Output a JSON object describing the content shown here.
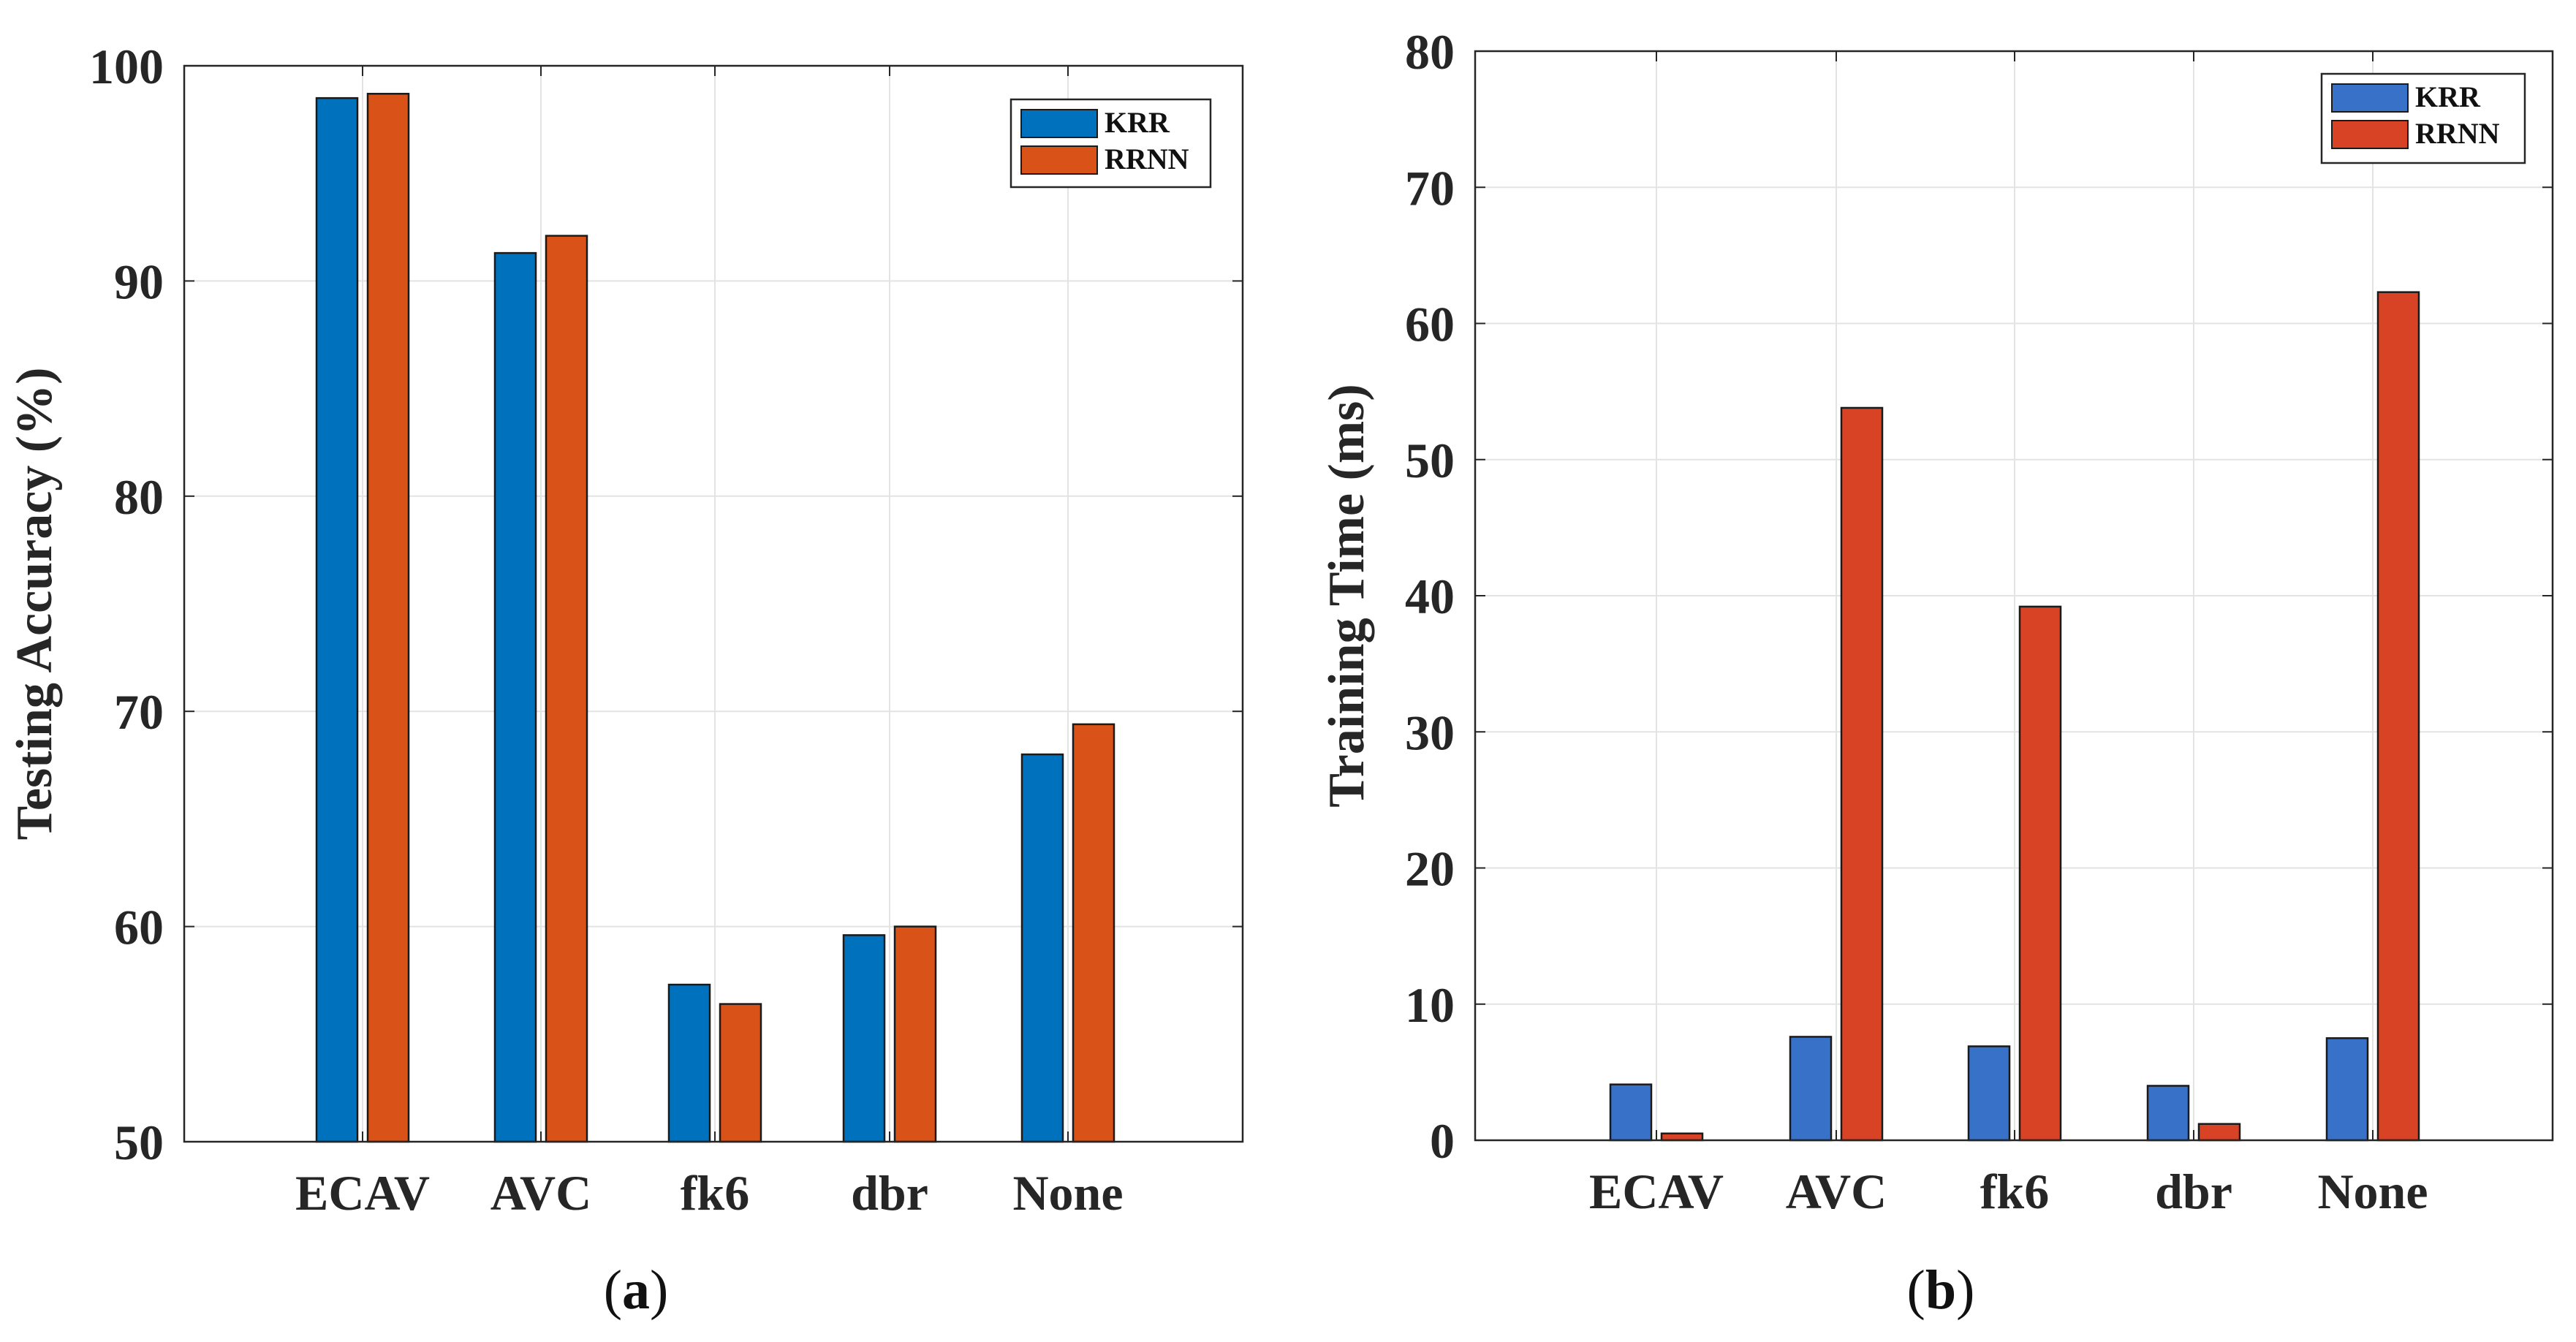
{
  "chart_data": [
    {
      "type": "bar",
      "caption_letter": "a",
      "categories": [
        "ECAV",
        "AVC",
        "fk6",
        "dbr",
        "None"
      ],
      "series": [
        {
          "name": "KRR",
          "values": [
            98.5,
            91.3,
            57.3,
            59.6,
            68.0
          ],
          "color": "#0072BD"
        },
        {
          "name": "RRNN",
          "values": [
            98.7,
            92.1,
            56.4,
            60.0,
            69.4
          ],
          "color": "#D95319"
        }
      ],
      "ylabel": "Testing Accuracy (%)",
      "ylim": [
        50,
        100
      ],
      "yticks": [
        50,
        60,
        70,
        80,
        90,
        100
      ],
      "grid": true,
      "legend": "top-right"
    },
    {
      "type": "bar",
      "caption_letter": "b",
      "categories": [
        "ECAV",
        "AVC",
        "fk6",
        "dbr",
        "None"
      ],
      "series": [
        {
          "name": "KRR",
          "values": [
            4.1,
            7.6,
            6.9,
            4.0,
            7.5
          ],
          "color": "#3771C8"
        },
        {
          "name": "RRNN",
          "values": [
            0.5,
            53.8,
            39.2,
            1.2,
            62.3
          ],
          "color": "#D84326"
        }
      ],
      "ylabel": "Training Time (ms)",
      "ylim": [
        0,
        80
      ],
      "yticks": [
        0,
        10,
        20,
        30,
        40,
        50,
        60,
        70,
        80
      ],
      "grid": true,
      "legend": "top-right"
    }
  ]
}
